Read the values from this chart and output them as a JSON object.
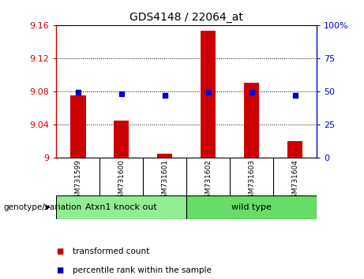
{
  "title": "GDS4148 / 22064_at",
  "samples": [
    "GSM731599",
    "GSM731600",
    "GSM731601",
    "GSM731602",
    "GSM731603",
    "GSM731604"
  ],
  "red_values": [
    9.075,
    9.045,
    9.005,
    9.153,
    9.09,
    9.02
  ],
  "blue_values": [
    9.079,
    9.077,
    9.075,
    9.079,
    9.079,
    9.075
  ],
  "ylim": [
    9.0,
    9.16
  ],
  "yticks": [
    9.0,
    9.04,
    9.08,
    9.12,
    9.16
  ],
  "ytick_labels": [
    "9",
    "9.04",
    "9.08",
    "9.12",
    "9.16"
  ],
  "y2ticks": [
    0,
    25,
    50,
    75,
    100
  ],
  "y2tick_labels": [
    "0",
    "25",
    "50",
    "75",
    "100%"
  ],
  "bar_color": "#cc0000",
  "dot_color": "#0000cc",
  "groups": [
    {
      "label": "Atxn1 knock out",
      "indices": [
        0,
        1,
        2
      ],
      "color": "#90ee90"
    },
    {
      "label": "wild type",
      "indices": [
        3,
        4,
        5
      ],
      "color": "#66dd66"
    }
  ],
  "group_label": "genotype/variation",
  "legend_red": "transformed count",
  "legend_blue": "percentile rank within the sample",
  "bar_width": 0.35,
  "base": 9.0,
  "background_color": "#ffffff",
  "plot_bg": "#ffffff",
  "tick_label_color_left": "#cc0000",
  "tick_label_color_right": "#0000cc",
  "sample_box_color": "#d3d3d3"
}
